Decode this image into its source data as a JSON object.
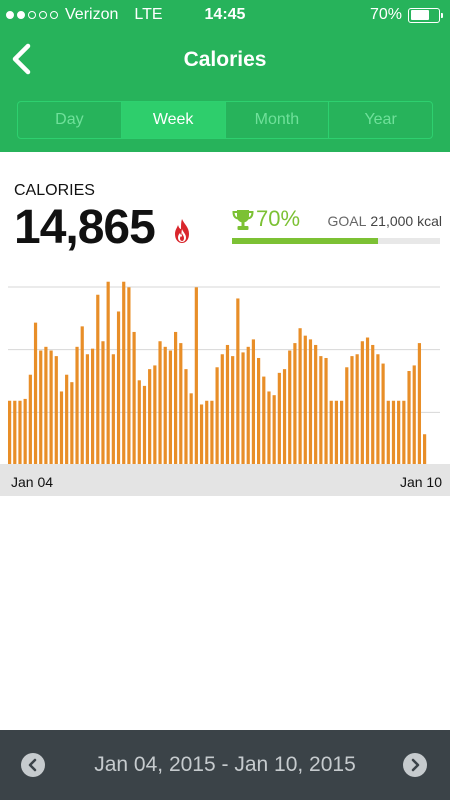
{
  "status_bar": {
    "carrier": "Verizon",
    "network": "LTE",
    "time": "14:45",
    "battery": "70%",
    "battery_level": 0.7,
    "signal_bars_filled": 2,
    "signal_bars_total": 5
  },
  "nav": {
    "title": "Calories",
    "back_icon": "chevron-left-icon"
  },
  "tabs": [
    {
      "label": "Day",
      "active": false
    },
    {
      "label": "Week",
      "active": true
    },
    {
      "label": "Month",
      "active": false
    },
    {
      "label": "Year",
      "active": false
    }
  ],
  "stats": {
    "label": "CALORIES",
    "value": "14,865",
    "flame_icon": "flame-icon",
    "trophy_icon": "trophy-icon",
    "goal_percent_text": "70%",
    "goal_label": "GOAL",
    "goal_value": "21,000 kcal",
    "goal_progress": 0.7
  },
  "chart_data": {
    "type": "bar",
    "x_start_label": "Jan 04",
    "x_end_label": "Jan 10",
    "gridlines": 3,
    "values": [
      0.34,
      0.34,
      0.34,
      0.35,
      0.48,
      0.76,
      0.61,
      0.63,
      0.61,
      0.58,
      0.39,
      0.48,
      0.44,
      0.63,
      0.74,
      0.59,
      0.62,
      0.91,
      0.66,
      0.98,
      0.59,
      0.82,
      0.98,
      0.95,
      0.71,
      0.45,
      0.42,
      0.51,
      0.53,
      0.66,
      0.63,
      0.61,
      0.71,
      0.65,
      0.51,
      0.38,
      0.95,
      0.32,
      0.34,
      0.34,
      0.52,
      0.59,
      0.64,
      0.58,
      0.89,
      0.6,
      0.63,
      0.67,
      0.57,
      0.47,
      0.39,
      0.37,
      0.49,
      0.51,
      0.61,
      0.65,
      0.73,
      0.69,
      0.67,
      0.64,
      0.58,
      0.57,
      0.34,
      0.34,
      0.34,
      0.52,
      0.58,
      0.59,
      0.66,
      0.68,
      0.64,
      0.59,
      0.54,
      0.34,
      0.34,
      0.34,
      0.34,
      0.5,
      0.53,
      0.65,
      0.16
    ],
    "colors": {
      "bar": "#e88e28",
      "grid": "#d7d7d7"
    }
  },
  "footer": {
    "range": "Jan 04, 2015 - Jan 10, 2015",
    "prev_icon": "chevron-left-circle-icon",
    "next_icon": "chevron-right-circle-icon"
  },
  "colors": {
    "brand_green": "#27b35b",
    "progress_green": "#7cc134",
    "footer_bg": "#3b4348"
  }
}
